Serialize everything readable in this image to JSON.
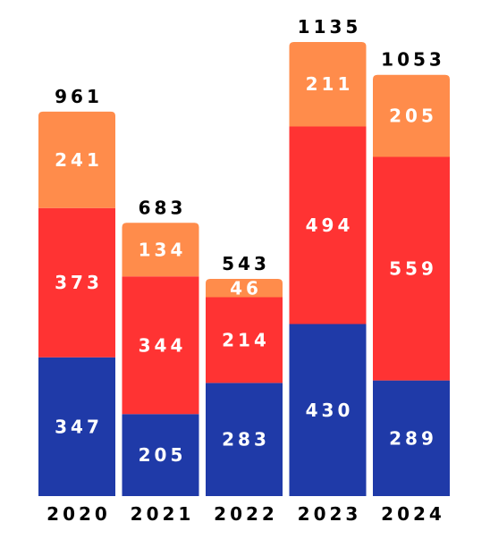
{
  "chart_data": {
    "type": "bar",
    "stacked": true,
    "categories": [
      "2020",
      "2021",
      "2022",
      "2023",
      "2024"
    ],
    "series": [
      {
        "values": [
          347,
          205,
          283,
          430,
          289
        ],
        "color": "#1f3aa8"
      },
      {
        "values": [
          373,
          344,
          214,
          494,
          559
        ],
        "color": "#ff3333"
      },
      {
        "values": [
          241,
          134,
          46,
          211,
          205
        ],
        "color": "#ff8c4b"
      }
    ],
    "totals": [
      961,
      683,
      543,
      1135,
      1053
    ],
    "title": "",
    "xlabel": "",
    "ylabel": "",
    "ylim": [
      0,
      1135
    ],
    "grid": false,
    "legend": "none"
  }
}
